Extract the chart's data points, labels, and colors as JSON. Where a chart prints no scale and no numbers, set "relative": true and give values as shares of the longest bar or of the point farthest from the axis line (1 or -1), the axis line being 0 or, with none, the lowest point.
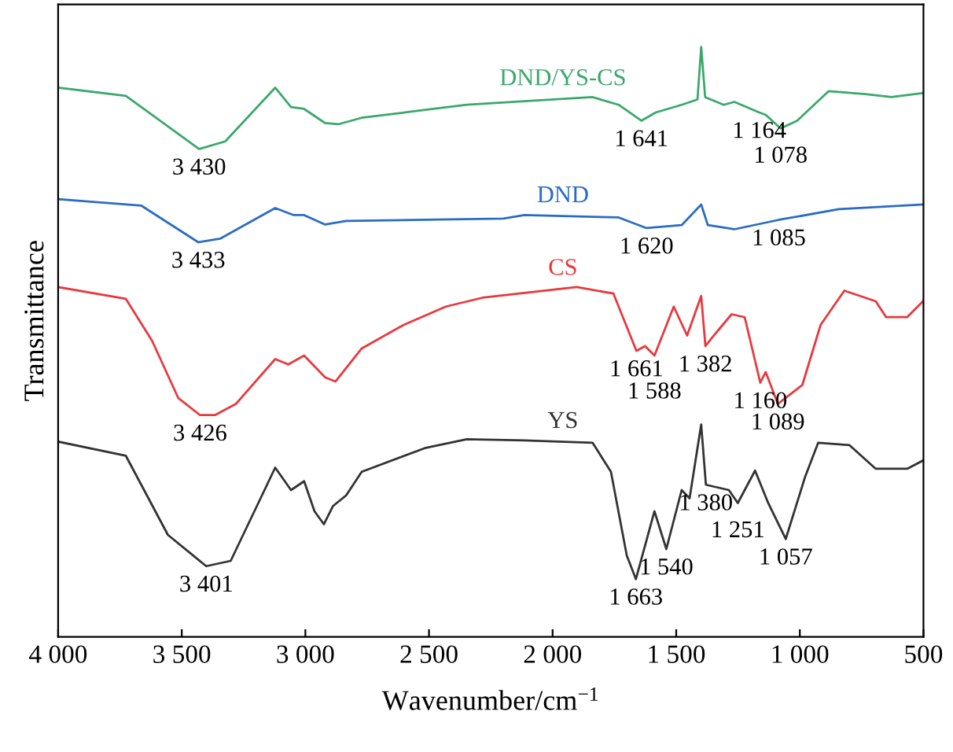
{
  "chart_data": {
    "type": "line",
    "relative": true,
    "xlabel": "Wavenumber/cm$^{−1}$",
    "ylabel": "Transmittance",
    "xlim": [
      4000,
      500
    ],
    "xticks": [
      {
        "value": 4000,
        "label": "4 000"
      },
      {
        "value": 3500,
        "label": "3 500"
      },
      {
        "value": 3000,
        "label": "3 000"
      },
      {
        "value": 2500,
        "label": "2 500"
      },
      {
        "value": 2000,
        "label": "2 000"
      },
      {
        "value": 1500,
        "label": "1 500"
      },
      {
        "value": 1000,
        "label": "1 000"
      },
      500
    ],
    "tick_labels": "x",
    "grid": false,
    "legend": false,
    "marker": "none",
    "line_style": "solid",
    "series": [
      {
        "name": "DND/YS-CS",
        "color": "#3aa86b",
        "x": [
          4000,
          3726,
          3430,
          3324,
          3122,
          3058,
          3005,
          2920,
          2867,
          2772,
          2560,
          2347,
          1838,
          1733,
          1641,
          1583,
          1478,
          1414,
          1399,
          1383,
          1308,
          1265,
          1164,
          1138,
          1078,
          1011,
          884,
          735,
          629,
          502
        ],
        "values": [
          0.931,
          0.917,
          0.827,
          0.84,
          0.931,
          0.898,
          0.895,
          0.871,
          0.869,
          0.88,
          0.891,
          0.902,
          0.915,
          0.902,
          0.875,
          0.889,
          0.902,
          0.911,
          1.0,
          0.915,
          0.902,
          0.907,
          0.889,
          0.885,
          0.862,
          0.875,
          0.925,
          0.92,
          0.915,
          0.922
        ]
      },
      {
        "name": "DND",
        "color": "#2a6cc4",
        "x": [
          4000,
          3663,
          3433,
          3345,
          3122,
          3047,
          3005,
          2920,
          2835,
          2199,
          2114,
          1733,
          1620,
          1478,
          1399,
          1372,
          1265,
          1085,
          842,
          502
        ],
        "values": [
          0.742,
          0.731,
          0.669,
          0.675,
          0.727,
          0.715,
          0.715,
          0.699,
          0.705,
          0.709,
          0.715,
          0.711,
          0.693,
          0.698,
          0.733,
          0.698,
          0.691,
          0.707,
          0.725,
          0.733
        ]
      },
      {
        "name": "CS",
        "color": "#e8383d",
        "x": [
          4000,
          3726,
          3620,
          3514,
          3426,
          3366,
          3281,
          3122,
          3069,
          3005,
          2920,
          2878,
          2772,
          2602,
          2432,
          2284,
          2220,
          1902,
          1754,
          1661,
          1626,
          1588,
          1510,
          1456,
          1399,
          1382,
          1340,
          1276,
          1223,
          1160,
          1138,
          1089,
          990,
          916,
          820,
          693,
          651,
          566,
          502
        ],
        "values": [
          0.593,
          0.573,
          0.502,
          0.405,
          0.376,
          0.376,
          0.395,
          0.471,
          0.462,
          0.477,
          0.44,
          0.433,
          0.489,
          0.529,
          0.56,
          0.575,
          0.578,
          0.593,
          0.582,
          0.485,
          0.493,
          0.477,
          0.56,
          0.511,
          0.578,
          0.493,
          0.515,
          0.547,
          0.542,
          0.431,
          0.449,
          0.395,
          0.427,
          0.529,
          0.587,
          0.569,
          0.542,
          0.542,
          0.569
        ]
      },
      {
        "name": "YS",
        "color": "#333333",
        "x": [
          4000,
          3726,
          3556,
          3401,
          3302,
          3122,
          3058,
          3005,
          2963,
          2925,
          2888,
          2835,
          2772,
          2517,
          2347,
          2114,
          1838,
          1764,
          1700,
          1663,
          1588,
          1540,
          1478,
          1446,
          1399,
          1380,
          1287,
          1251,
          1181,
          1128,
          1057,
          979,
          926,
          799,
          693,
          566,
          502
        ],
        "values": [
          0.331,
          0.307,
          0.173,
          0.12,
          0.129,
          0.287,
          0.249,
          0.264,
          0.213,
          0.191,
          0.222,
          0.24,
          0.28,
          0.32,
          0.335,
          0.333,
          0.329,
          0.28,
          0.138,
          0.098,
          0.213,
          0.149,
          0.249,
          0.235,
          0.36,
          0.258,
          0.249,
          0.227,
          0.282,
          0.227,
          0.166,
          0.271,
          0.329,
          0.325,
          0.285,
          0.285,
          0.299
        ]
      }
    ],
    "annotations": [
      {
        "text": "3 430",
        "x": 3430,
        "y": 0.827
      },
      {
        "text": "3 433",
        "x": 3433,
        "y": 0.669
      },
      {
        "text": "3 426",
        "x": 3426,
        "y": 0.376
      },
      {
        "text": "3 401",
        "x": 3401,
        "y": 0.12
      },
      {
        "text": "1 641",
        "x": 1641,
        "y": 0.875
      },
      {
        "text": "1 164",
        "x": 1164,
        "y": 0.889
      },
      {
        "text": "1 078",
        "x": 1078,
        "y": 0.862
      },
      {
        "text": "1 620",
        "x": 1620,
        "y": 0.693
      },
      {
        "text": "1 085",
        "x": 1085,
        "y": 0.707
      },
      {
        "text": "1 661",
        "x": 1661,
        "y": 0.485
      },
      {
        "text": "1 588",
        "x": 1588,
        "y": 0.477
      },
      {
        "text": "1 382",
        "x": 1382,
        "y": 0.493
      },
      {
        "text": "1 160",
        "x": 1160,
        "y": 0.431
      },
      {
        "text": "1 089",
        "x": 1089,
        "y": 0.395
      },
      {
        "text": "1 380",
        "x": 1380,
        "y": 0.258
      },
      {
        "text": "1 251",
        "x": 1251,
        "y": 0.227
      },
      {
        "text": "1 540",
        "x": 1540,
        "y": 0.149
      },
      {
        "text": "1 663",
        "x": 1663,
        "y": 0.098
      },
      {
        "text": "1 057",
        "x": 1057,
        "y": 0.166
      }
    ]
  }
}
